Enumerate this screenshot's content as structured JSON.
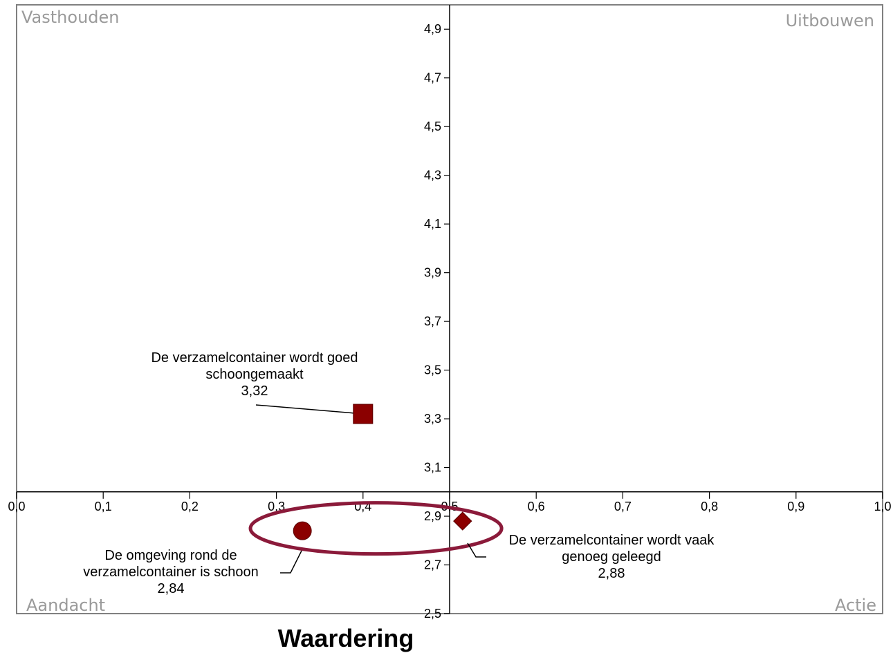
{
  "chart_data": {
    "type": "scatter",
    "title": "",
    "xlabel": "Waardering",
    "ylabel": "",
    "xlim": [
      0.0,
      1.0
    ],
    "ylim": [
      2.5,
      5.0
    ],
    "x_ticks": [
      "0,0",
      "0,1",
      "0,2",
      "0,3",
      "0,4",
      "0,5",
      "0,6",
      "0,7",
      "0,8",
      "0,9",
      "1,0"
    ],
    "x_tick_values": [
      0.0,
      0.1,
      0.2,
      0.3,
      0.4,
      0.5,
      0.6,
      0.7,
      0.8,
      0.9,
      1.0
    ],
    "y_ticks": [
      "2,5",
      "2,7",
      "2,9",
      "3,1",
      "3,3",
      "3,5",
      "3,7",
      "3,9",
      "4,1",
      "4,3",
      "4,5",
      "4,7",
      "4,9"
    ],
    "y_tick_values": [
      2.5,
      2.7,
      2.9,
      3.1,
      3.3,
      3.5,
      3.7,
      3.9,
      4.1,
      4.3,
      4.5,
      4.7,
      4.9
    ],
    "x_axis_crosses_y_at": 3.0,
    "y_axis_crosses_x_at": 0.5,
    "grid": false,
    "quadrants": {
      "top_left": "Vasthouden",
      "top_right": "Uitbouwen",
      "bottom_left": "Aandacht",
      "bottom_right": "Actie"
    },
    "points": [
      {
        "name": "De verzamelcontainer wordt goed schoongemaakt",
        "label_lines": [
          "De verzamelcontainer wordt goed",
          "schoongemaakt",
          "3,32"
        ],
        "x": 0.4,
        "y": 3.32,
        "marker": "square",
        "color": "#8b0000"
      },
      {
        "name": "De omgeving rond de verzamelcontainer is schoon",
        "label_lines": [
          "De omgeving rond de",
          "verzamelcontainer is schoon",
          "2,84"
        ],
        "x": 0.33,
        "y": 2.84,
        "marker": "circle",
        "color": "#8b0000"
      },
      {
        "name": "De verzamelcontainer wordt vaak genoeg geleegd",
        "label_lines": [
          "De verzamelcontainer wordt vaak",
          "genoeg geleegd",
          "2,88"
        ],
        "x": 0.515,
        "y": 2.88,
        "marker": "diamond",
        "color": "#8b0000"
      }
    ],
    "highlight_ellipse": {
      "cx": 0.415,
      "cy": 2.85,
      "rx": 0.145,
      "ry": 0.105,
      "color": "#8b1a3a"
    }
  }
}
